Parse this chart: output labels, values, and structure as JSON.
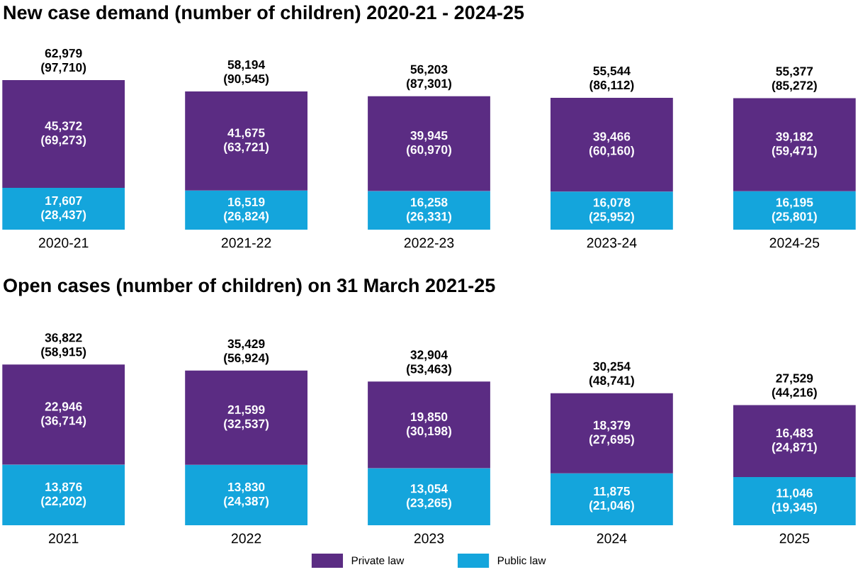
{
  "chart_data": [
    {
      "type": "bar",
      "title": "New case demand (number of children) 2020-21 - 2024-25",
      "categories": [
        "2020-21",
        "2021-22",
        "2022-23",
        "2023-24",
        "2024-25"
      ],
      "stacked": true,
      "tick_labels": "x",
      "legend": "bottom",
      "series": [
        {
          "name": "Public law",
          "color": "#14a5dc",
          "values": [
            17607,
            16519,
            16258,
            16078,
            16195
          ],
          "value_labels": [
            "17,607\n(28,437)",
            "16,519\n(26,824)",
            "16,258\n(26,331)",
            "16,078\n(25,952)",
            "16,195\n(25,801)"
          ]
        },
        {
          "name": "Private law",
          "color": "#5b2c83",
          "values": [
            45372,
            41675,
            39945,
            39466,
            39182
          ],
          "value_labels": [
            "45,372\n(69,273)",
            "41,675\n(63,721)",
            "39,945\n(60,970)",
            "39,466\n(60,160)",
            "39,182\n(59,471)"
          ]
        }
      ],
      "totals": [
        "62,979\n(97,710)",
        "58,194\n(90,545)",
        "56,203\n(87,301)",
        "55,544\n(86,112)",
        "55,377\n(85,272)"
      ]
    },
    {
      "type": "bar",
      "title": "Open cases (number of children) on 31 March 2021-25",
      "categories": [
        "2021",
        "2022",
        "2023",
        "2024",
        "2025"
      ],
      "stacked": true,
      "tick_labels": "x",
      "series": [
        {
          "color": "#14a5dc",
          "values": [
            13876,
            13830,
            13054,
            11875,
            11046
          ],
          "value_labels": [
            "13,876\n(22,202)",
            "13,830\n(24,387)",
            "13,054\n(23,265)",
            "11,875\n(21,046)",
            "11,046\n(19,345)"
          ]
        },
        {
          "color": "#5b2c83",
          "values": [
            22946,
            21599,
            19850,
            18379,
            16483
          ],
          "value_labels": [
            "22,946\n(36,714)",
            "21,599\n(32,537)",
            "19,850\n(30,198)",
            "18,379\n(27,695)",
            "16,483\n(24,871)"
          ]
        }
      ],
      "totals": [
        "36,822\n(58,915)",
        "35,429\n(56,924)",
        "32,904\n(53,463)",
        "30,254\n(48,741)",
        "27,529\n(44,216)"
      ]
    }
  ]
}
